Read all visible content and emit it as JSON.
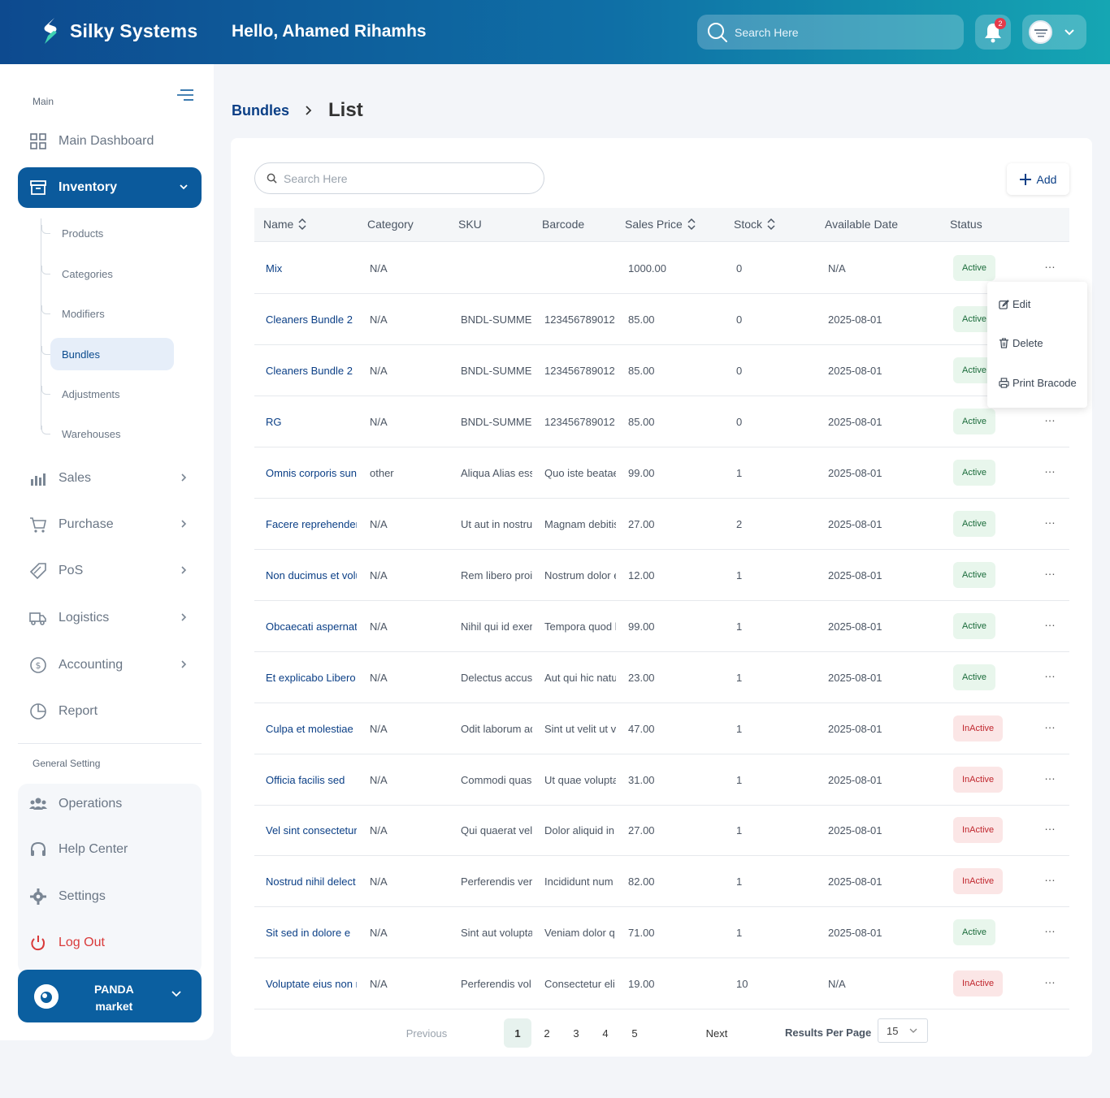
{
  "header": {
    "brand": "Silky Systems",
    "greeting": "Hello, Ahamed Rihamhs",
    "search_placeholder": "Search Here",
    "notification_count": "2"
  },
  "sidebar": {
    "main_section": "Main",
    "items": [
      {
        "label": "Main Dashboard"
      },
      {
        "label": "Inventory"
      },
      {
        "label": "Sales"
      },
      {
        "label": "Purchase"
      },
      {
        "label": "PoS"
      },
      {
        "label": "Logistics"
      },
      {
        "label": "Accounting"
      },
      {
        "label": "Report"
      }
    ],
    "inventory_sub": [
      {
        "label": "Products"
      },
      {
        "label": "Categories"
      },
      {
        "label": "Modifiers"
      },
      {
        "label": "Bundles"
      },
      {
        "label": "Adjustments"
      },
      {
        "label": "Warehouses"
      }
    ],
    "general_section": "General Setting",
    "general_items": [
      {
        "label": "Operations"
      },
      {
        "label": "Help Center"
      },
      {
        "label": "Settings"
      },
      {
        "label": "Log Out"
      }
    ],
    "store": {
      "line1": "PANDA",
      "line2": "market"
    }
  },
  "breadcrumb": {
    "parent": "Bundles",
    "current": "List"
  },
  "toolbar": {
    "search_placeholder": "Search Here",
    "add_label": "Add"
  },
  "table": {
    "columns": [
      "Name",
      "Category",
      "SKU",
      "Barcode",
      "Sales Price",
      "Stock",
      "Available Date",
      "Status"
    ],
    "rows": [
      {
        "name": "Mix",
        "category": "N/A",
        "sku": "",
        "barcode": "",
        "price": "1000.00",
        "stock": "0",
        "date": "N/A",
        "status": "Active"
      },
      {
        "name": "Cleaners Bundle 2",
        "category": "N/A",
        "sku": "BNDL-SUMMER",
        "barcode": "123456789012",
        "price": "85.00",
        "stock": "0",
        "date": "2025-08-01",
        "status": "Active"
      },
      {
        "name": "Cleaners Bundle 2",
        "category": "N/A",
        "sku": "BNDL-SUMMER",
        "barcode": "123456789012",
        "price": "85.00",
        "stock": "0",
        "date": "2025-08-01",
        "status": "Active"
      },
      {
        "name": "RG",
        "category": "N/A",
        "sku": "BNDL-SUMMER",
        "barcode": "123456789012",
        "price": "85.00",
        "stock": "0",
        "date": "2025-08-01",
        "status": "Active"
      },
      {
        "name": "Omnis corporis sunt",
        "category": "other",
        "sku": "Aliqua Alias ess",
        "barcode": "Quo iste beatae",
        "price": "99.00",
        "stock": "1",
        "date": "2025-08-01",
        "status": "Active"
      },
      {
        "name": "Facere reprehender",
        "category": "N/A",
        "sku": "Ut aut in nostru",
        "barcode": "Magnam debitis",
        "price": "27.00",
        "stock": "2",
        "date": "2025-08-01",
        "status": "Active"
      },
      {
        "name": "Non ducimus et volu",
        "category": "N/A",
        "sku": "Rem libero proi",
        "barcode": "Nostrum dolor e",
        "price": "12.00",
        "stock": "1",
        "date": "2025-08-01",
        "status": "Active"
      },
      {
        "name": "Obcaecati aspernatu",
        "category": "N/A",
        "sku": "Nihil qui id exer",
        "barcode": "Tempora quod l",
        "price": "99.00",
        "stock": "1",
        "date": "2025-08-01",
        "status": "Active"
      },
      {
        "name": "Et explicabo Libero",
        "category": "N/A",
        "sku": "Delectus accus",
        "barcode": "Aut qui hic natu",
        "price": "23.00",
        "stock": "1",
        "date": "2025-08-01",
        "status": "Active"
      },
      {
        "name": "Culpa et molestiae n",
        "category": "N/A",
        "sku": "Odit laborum ad",
        "barcode": "Sint ut velit ut v",
        "price": "47.00",
        "stock": "1",
        "date": "2025-08-01",
        "status": "InActive"
      },
      {
        "name": "Officia facilis sed",
        "category": "N/A",
        "sku": "Commodi quas",
        "barcode": "Ut quae volupta",
        "price": "31.00",
        "stock": "1",
        "date": "2025-08-01",
        "status": "InActive"
      },
      {
        "name": "Vel sint consectetur",
        "category": "N/A",
        "sku": "Qui quaerat vel",
        "barcode": "Dolor aliquid in",
        "price": "27.00",
        "stock": "1",
        "date": "2025-08-01",
        "status": "InActive"
      },
      {
        "name": "Nostrud nihil delect",
        "category": "N/A",
        "sku": "Perferendis ver",
        "barcode": "Incididunt num",
        "price": "82.00",
        "stock": "1",
        "date": "2025-08-01",
        "status": "InActive"
      },
      {
        "name": "Sit sed in dolore e",
        "category": "N/A",
        "sku": "Sint aut volupta",
        "barcode": "Veniam dolor q",
        "price": "71.00",
        "stock": "1",
        "date": "2025-08-01",
        "status": "Active"
      },
      {
        "name": "Voluptate eius non r",
        "category": "N/A",
        "sku": "Perferendis vol",
        "barcode": "Consectetur eli",
        "price": "19.00",
        "stock": "10",
        "date": "N/A",
        "status": "InActive"
      }
    ]
  },
  "row_menu": {
    "edit": "Edit",
    "delete": "Delete",
    "print": "Print Bracode"
  },
  "pagination": {
    "previous": "Previous",
    "pages": [
      "1",
      "2",
      "3",
      "4",
      "5"
    ],
    "current": "1",
    "next": "Next",
    "results_label": "Results Per Page",
    "per_page": "15"
  },
  "colors": {
    "brand_dark": "#0d4a8f",
    "brand_teal": "#15a6b3",
    "active_bg": "#e8f6ec",
    "inactive_bg": "#fbe6e6"
  }
}
